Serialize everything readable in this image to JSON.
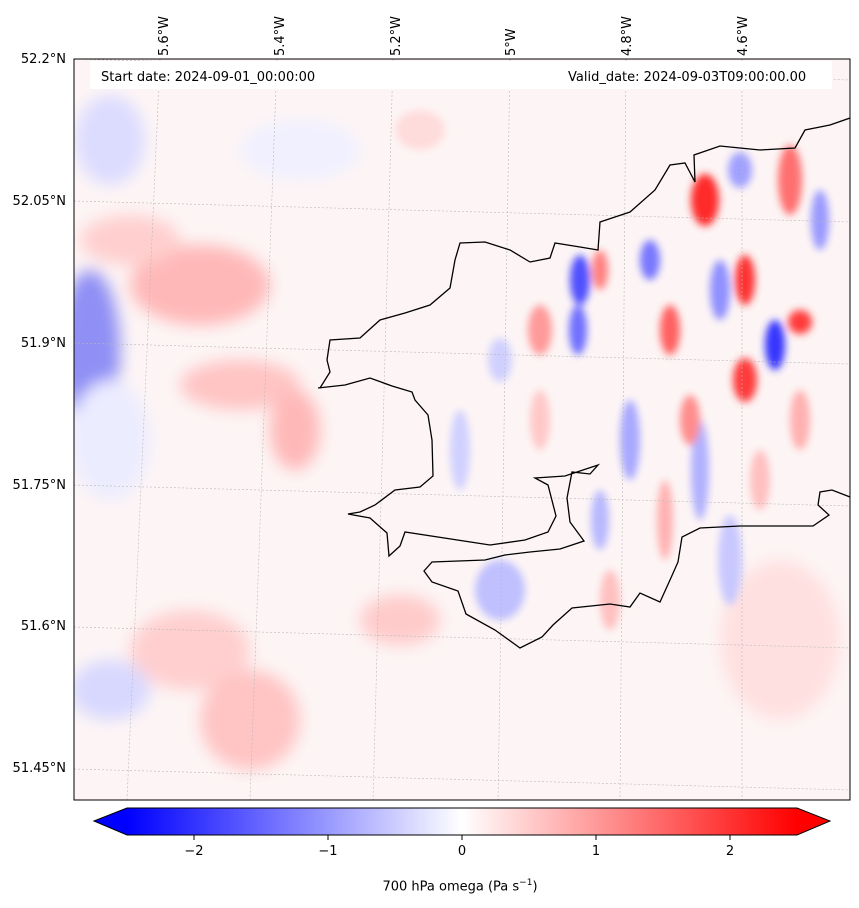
{
  "header": {
    "start_label": "Start date: 2024-09-01_00:00:00",
    "valid_label": "Valid_date: 2024-09-03T09:00:00.00"
  },
  "axes": {
    "lon_ticks": [
      "5.6°W",
      "5.4°W",
      "5.2°W",
      "5°W",
      "4.8°W",
      "4.6°W"
    ],
    "lat_ticks": [
      "52.2°N",
      "52.05°N",
      "51.9°N",
      "51.75°N",
      "51.6°N",
      "51.45°N"
    ]
  },
  "colorbar": {
    "ticks": [
      "−2",
      "−1",
      "0",
      "1",
      "2"
    ],
    "range": [
      -2.5,
      2.5
    ],
    "label_main": "700 hPa omega (Pa s",
    "label_sup": "−1",
    "label_end": ")",
    "colors": {
      "low": "#0000ff",
      "mid": "#ffffff",
      "high": "#ff0000"
    }
  },
  "map": {
    "field": "700 hPa omega",
    "coastline_color": "#000000",
    "gridlines": true
  }
}
